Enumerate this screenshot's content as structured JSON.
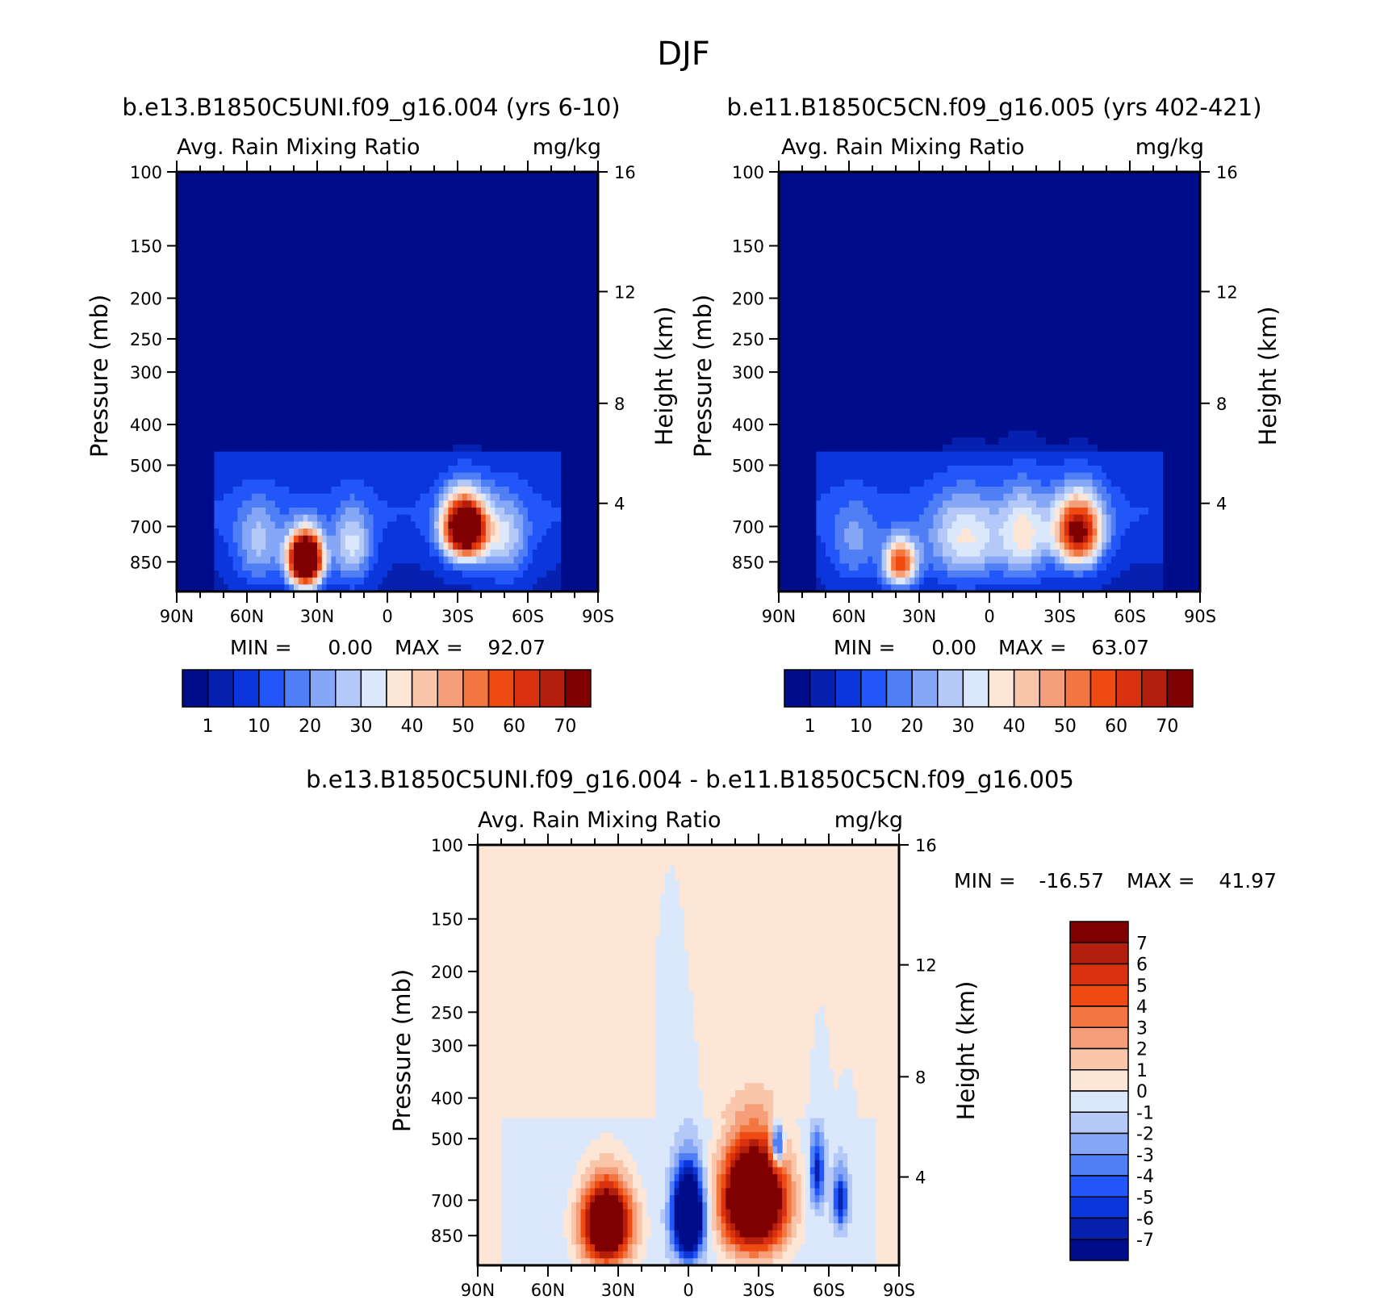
{
  "page": {
    "season": "DJF"
  },
  "colors": {
    "levels16": [
      "#000d8a",
      "#0620b0",
      "#0a36dc",
      "#2356f8",
      "#4f7ef5",
      "#85a7f5",
      "#b4c9f7",
      "#dbe7fb",
      "#fde6d6",
      "#f9c5ab",
      "#f69e79",
      "#f2763f",
      "#ee4a12",
      "#d93010",
      "#b31f0c",
      "#7f0000"
    ],
    "diff16": [
      "#000d8a",
      "#0620b0",
      "#0a36dc",
      "#2356f8",
      "#4f7ef5",
      "#85a7f5",
      "#b4c9f7",
      "#dbe7fb",
      "#fde6d6",
      "#f9c5ab",
      "#f69e79",
      "#f2763f",
      "#ee4a12",
      "#d93010",
      "#b31f0c",
      "#7f0000"
    ]
  },
  "chart_data": [
    {
      "id": "panel-left",
      "type": "heatmap",
      "case_title": "b.e13.B1850C5UNI.f09_g16.004 (yrs 6-10)",
      "variable": "Avg. Rain Mixing Ratio",
      "units": "mg/kg",
      "ylabel": "Pressure (mb)",
      "ylabel_right": "Height (km)",
      "pressure_ticks": [
        "100",
        "150",
        "200",
        "250",
        "300",
        "400",
        "500",
        "700",
        "850"
      ],
      "pressure_values": [
        100,
        150,
        200,
        250,
        300,
        400,
        500,
        700,
        850
      ],
      "height_ticks": [
        "16",
        "12",
        "8",
        "4"
      ],
      "height_values": [
        16,
        12,
        8,
        4
      ],
      "x_ticks": [
        "90N",
        "60N",
        "30N",
        "0",
        "30S",
        "60S",
        "90S"
      ],
      "x_values": [
        90,
        60,
        30,
        0,
        -30,
        -60,
        -90
      ],
      "ylim": [
        100,
        1000
      ],
      "min_label": "MIN =",
      "min": "0.00",
      "max_label": "MAX =",
      "max": "92.07",
      "colorbar_ticks": [
        "1",
        "10",
        "20",
        "30",
        "40",
        "50",
        "60",
        "70"
      ],
      "blobs": [
        {
          "lat": 35,
          "p": 840,
          "amp": 115,
          "dlat": 7,
          "dp": 120
        },
        {
          "lat": -33,
          "p": 705,
          "amp": 95,
          "dlat": 9,
          "dp": 120
        },
        {
          "lat": 55,
          "p": 780,
          "amp": 20,
          "dlat": 10,
          "dp": 170
        },
        {
          "lat": 15,
          "p": 790,
          "amp": 25,
          "dlat": 8,
          "dp": 160
        },
        {
          "lat": -50,
          "p": 760,
          "amp": 22,
          "dlat": 10,
          "dp": 170
        }
      ],
      "background_level": 1.3
    },
    {
      "id": "panel-right",
      "type": "heatmap",
      "case_title": "b.e11.B1850C5CN.f09_g16.005 (yrs 402-421)",
      "variable": "Avg. Rain Mixing Ratio",
      "units": "mg/kg",
      "ylabel": "Pressure (mb)",
      "ylabel_right": "Height (km)",
      "pressure_ticks": [
        "100",
        "150",
        "200",
        "250",
        "300",
        "400",
        "500",
        "700",
        "850"
      ],
      "pressure_values": [
        100,
        150,
        200,
        250,
        300,
        400,
        500,
        700,
        850
      ],
      "height_ticks": [
        "16",
        "12",
        "8",
        "4"
      ],
      "height_values": [
        16,
        12,
        8,
        4
      ],
      "x_ticks": [
        "90N",
        "60N",
        "30N",
        "0",
        "30S",
        "60S",
        "90S"
      ],
      "x_values": [
        90,
        60,
        30,
        0,
        -30,
        -60,
        -90
      ],
      "ylim": [
        100,
        1000
      ],
      "min_label": "MIN =",
      "min": "0.00",
      "max_label": "MAX =",
      "max": "63.07",
      "colorbar_ticks": [
        "1",
        "10",
        "20",
        "30",
        "40",
        "50",
        "60",
        "70"
      ],
      "blobs": [
        {
          "lat": 38,
          "p": 855,
          "amp": 55,
          "dlat": 7,
          "dp": 110
        },
        {
          "lat": -38,
          "p": 720,
          "amp": 68,
          "dlat": 10,
          "dp": 140
        },
        {
          "lat": 10,
          "p": 760,
          "amp": 28,
          "dlat": 16,
          "dp": 180
        },
        {
          "lat": -15,
          "p": 740,
          "amp": 28,
          "dlat": 10,
          "dp": 180
        },
        {
          "lat": 58,
          "p": 780,
          "amp": 14,
          "dlat": 10,
          "dp": 170
        }
      ],
      "background_level": 1.3
    },
    {
      "id": "panel-diff",
      "type": "heatmap",
      "case_title": "b.e13.B1850C5UNI.f09_g16.004 - b.e11.B1850C5CN.f09_g16.005",
      "variable": "Avg. Rain Mixing Ratio",
      "units": "mg/kg",
      "ylabel": "Pressure (mb)",
      "ylabel_right": "Height (km)",
      "pressure_ticks": [
        "100",
        "150",
        "200",
        "250",
        "300",
        "400",
        "500",
        "700",
        "850"
      ],
      "pressure_values": [
        100,
        150,
        200,
        250,
        300,
        400,
        500,
        700,
        850
      ],
      "height_ticks": [
        "16",
        "12",
        "8",
        "4"
      ],
      "height_values": [
        16,
        12,
        8,
        4
      ],
      "x_ticks": [
        "90N",
        "60N",
        "30N",
        "0",
        "30S",
        "60S",
        "90S"
      ],
      "x_values": [
        90,
        60,
        30,
        0,
        -30,
        -60,
        -90
      ],
      "ylim": [
        100,
        1000
      ],
      "min_label": "MIN =",
      "min": "-16.57",
      "max_label": "MAX =",
      "max": "41.97",
      "colorbar_ticks": [
        "7",
        "6",
        "5",
        "4",
        "3",
        "2",
        "1",
        "0",
        "-1",
        "-2",
        "-3",
        "-4",
        "-5",
        "-6",
        "-7"
      ],
      "blobs": [
        {
          "lat": 35,
          "p": 800,
          "amp": 14,
          "dlat": 10,
          "dp": 170
        },
        {
          "lat": -28,
          "p": 700,
          "amp": 16,
          "dlat": 13,
          "dp": 200
        },
        {
          "lat": 0,
          "p": 760,
          "amp": -16,
          "dlat": 6,
          "dp": 170
        },
        {
          "lat": -38,
          "p": 520,
          "amp": -8,
          "dlat": 2.5,
          "dp": 60
        },
        {
          "lat": -55,
          "p": 600,
          "amp": -6,
          "dlat": 3,
          "dp": 120
        },
        {
          "lat": -65,
          "p": 700,
          "amp": -6,
          "dlat": 3,
          "dp": 110
        }
      ],
      "background_level": -0.5
    }
  ]
}
